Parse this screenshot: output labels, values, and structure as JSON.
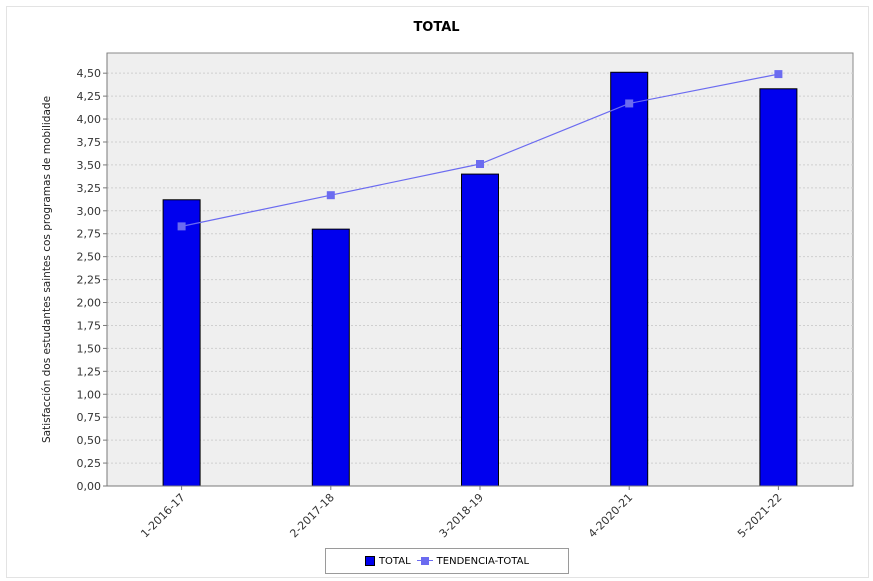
{
  "chart_data": {
    "type": "bar",
    "title": "TOTAL",
    "xlabel": "",
    "ylabel": "Satisfacción dos estudantes saintes cos programas de mobilidade",
    "categories": [
      "1-2016-17",
      "2-2017-18",
      "3-2018-19",
      "4-2020-21",
      "5-2021-22"
    ],
    "ylim": [
      0,
      4.72
    ],
    "yticks": [
      "0,00",
      "0,25",
      "0,50",
      "0,75",
      "1,00",
      "1,25",
      "1,50",
      "1,75",
      "2,00",
      "2,25",
      "2,50",
      "2,75",
      "3,00",
      "3,25",
      "3,50",
      "3,75",
      "4,00",
      "4,25",
      "4,50"
    ],
    "grid": true,
    "legend_position": "bottom",
    "series": [
      {
        "name": "TOTAL",
        "kind": "bar",
        "color": "#0000ee",
        "values": [
          3.12,
          2.8,
          3.4,
          4.51,
          4.33
        ]
      },
      {
        "name": "TENDENCIA-TOTAL",
        "kind": "line",
        "color": "#6b6bf0",
        "values": [
          2.83,
          3.17,
          3.51,
          4.17,
          4.49
        ]
      }
    ]
  }
}
